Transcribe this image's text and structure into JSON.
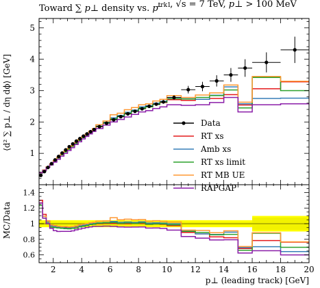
{
  "chart_data": {
    "type": "line",
    "title": "Toward ∑ p⊥ density vs. p⊥trk1, √s = 7 TeV, p⊥ > 100 MeV",
    "title_parts": {
      "prefix": "Toward ∑ ",
      "pperp": "p⊥",
      "mid": " density vs. ",
      "ptrk": "p",
      "ptrk_sup": "trk1",
      "ptrk_sub": "⊥",
      "energy": ", √s = 7 TeV, ",
      "cut_p": "p⊥",
      "cut": " > 100 MeV"
    },
    "ylabel": "⟨d² ∑ p⊥ / dη dϕ⟩ [GeV]",
    "xlabel": "p⊥ (leading track) [GeV]",
    "ratio_ylabel": "MC/Data",
    "xlim": [
      1,
      20
    ],
    "ylim": [
      0,
      5.3
    ],
    "ratio_ylim": [
      0.5,
      1.5
    ],
    "x_ticks": [
      "2",
      "4",
      "6",
      "8",
      "10",
      "12",
      "14",
      "16",
      "18",
      "20"
    ],
    "y_ticks": [
      "1",
      "2",
      "3",
      "4",
      "5"
    ],
    "ratio_ticks": [
      "0.6",
      "0.8",
      "1",
      "1.2",
      "1.4"
    ],
    "legend_position": "right-center",
    "bin_edges": [
      1.0,
      1.25,
      1.5,
      1.75,
      2.0,
      2.25,
      2.5,
      2.75,
      3.0,
      3.25,
      3.5,
      3.75,
      4.0,
      4.25,
      4.5,
      4.75,
      5.0,
      5.5,
      6.0,
      6.5,
      7.0,
      7.5,
      8.0,
      8.5,
      9.0,
      9.5,
      10.0,
      11.0,
      12.0,
      13.0,
      14.0,
      15.0,
      16.0,
      18.0,
      20.0
    ],
    "data": {
      "name": "Data",
      "color": "#000000",
      "x": [
        1.125,
        1.375,
        1.625,
        1.875,
        2.125,
        2.375,
        2.625,
        2.875,
        3.125,
        3.375,
        3.625,
        3.875,
        4.125,
        4.375,
        4.625,
        4.875,
        5.25,
        5.75,
        6.25,
        6.75,
        7.25,
        7.75,
        8.25,
        8.75,
        9.25,
        9.75,
        10.5,
        11.5,
        12.5,
        13.5,
        14.5,
        15.5,
        17.0,
        19.0
      ],
      "y": [
        0.3,
        0.42,
        0.55,
        0.67,
        0.79,
        0.9,
        1.01,
        1.11,
        1.21,
        1.3,
        1.39,
        1.47,
        1.55,
        1.62,
        1.69,
        1.76,
        1.85,
        1.96,
        2.07,
        2.17,
        2.26,
        2.34,
        2.42,
        2.5,
        2.57,
        2.64,
        2.78,
        3.03,
        3.13,
        3.31,
        3.5,
        3.72,
        3.9,
        4.3
      ],
      "yerr": [
        0.02,
        0.02,
        0.02,
        0.02,
        0.02,
        0.02,
        0.02,
        0.02,
        0.02,
        0.02,
        0.02,
        0.02,
        0.02,
        0.02,
        0.02,
        0.02,
        0.02,
        0.03,
        0.03,
        0.03,
        0.03,
        0.04,
        0.04,
        0.05,
        0.05,
        0.06,
        0.07,
        0.12,
        0.15,
        0.18,
        0.22,
        0.28,
        0.32,
        0.42
      ]
    },
    "series": [
      {
        "name": "RT xs",
        "color": "#e41a1c",
        "values": [
          0.39,
          0.47,
          0.57,
          0.66,
          0.77,
          0.87,
          0.97,
          1.06,
          1.15,
          1.24,
          1.33,
          1.42,
          1.51,
          1.58,
          1.67,
          1.75,
          1.85,
          1.97,
          2.08,
          2.17,
          2.26,
          2.35,
          2.43,
          2.48,
          2.56,
          2.62,
          2.71,
          2.69,
          2.72,
          2.75,
          2.87,
          2.54,
          3.06,
          3.28
        ]
      },
      {
        "name": "Amb xs",
        "color": "#377eb8",
        "values": [
          0.38,
          0.46,
          0.56,
          0.65,
          0.76,
          0.86,
          0.96,
          1.05,
          1.14,
          1.24,
          1.34,
          1.43,
          1.52,
          1.6,
          1.69,
          1.77,
          1.87,
          1.99,
          2.13,
          2.21,
          2.31,
          2.38,
          2.48,
          2.52,
          2.6,
          2.66,
          2.78,
          2.74,
          2.72,
          2.85,
          3.12,
          2.58,
          2.75,
          2.76
        ]
      },
      {
        "name": "RT xs limit",
        "color": "#2ca02c",
        "values": [
          0.37,
          0.45,
          0.55,
          0.64,
          0.75,
          0.85,
          0.95,
          1.04,
          1.13,
          1.22,
          1.31,
          1.41,
          1.5,
          1.58,
          1.67,
          1.75,
          1.86,
          1.98,
          2.1,
          2.18,
          2.28,
          2.35,
          2.45,
          2.48,
          2.56,
          2.63,
          2.74,
          2.73,
          2.78,
          2.84,
          3.02,
          2.45,
          3.42,
          3.0
        ]
      },
      {
        "name": "RT MB UE",
        "color": "#ff9933",
        "values": [
          0.38,
          0.46,
          0.57,
          0.66,
          0.77,
          0.87,
          0.97,
          1.07,
          1.16,
          1.25,
          1.35,
          1.45,
          1.54,
          1.62,
          1.71,
          1.79,
          1.91,
          2.03,
          2.23,
          2.28,
          2.39,
          2.46,
          2.55,
          2.58,
          2.67,
          2.72,
          2.84,
          2.78,
          2.86,
          2.93,
          3.18,
          2.63,
          3.45,
          3.3
        ]
      },
      {
        "name": "RAPGAP",
        "color": "#8a1ca8",
        "values": [
          0.38,
          0.45,
          0.55,
          0.63,
          0.72,
          0.81,
          0.91,
          1.0,
          1.09,
          1.18,
          1.28,
          1.37,
          1.46,
          1.54,
          1.62,
          1.7,
          1.79,
          1.9,
          2.0,
          2.08,
          2.16,
          2.24,
          2.32,
          2.36,
          2.43,
          2.48,
          2.55,
          2.53,
          2.55,
          2.62,
          2.78,
          2.32,
          2.55,
          2.58
        ]
      }
    ],
    "ratio_band": {
      "color": "#ffff00",
      "edges": [
        1.0,
        16.0,
        20.0
      ],
      "low": [
        0.955,
        0.9
      ],
      "high": [
        1.045,
        1.1
      ]
    },
    "ratio_inner_band": {
      "edges": [
        1.0,
        16.0,
        20.0
      ],
      "low": [
        0.98,
        0.92
      ],
      "high": [
        1.02,
        1.08
      ]
    }
  }
}
